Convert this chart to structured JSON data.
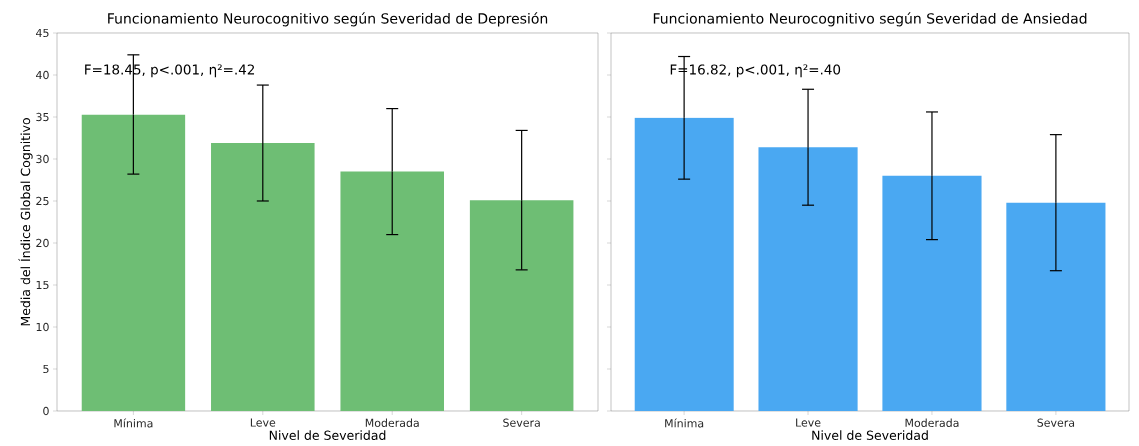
{
  "chart_data": [
    {
      "type": "bar",
      "title": "Funcionamiento Neurocognitivo según Severidad de Depresión",
      "xlabel": "Nivel de Severidad",
      "ylabel": "Media del Índice Global Cognitivo",
      "categories": [
        "Mínima",
        "Leve",
        "Moderada",
        "Severa"
      ],
      "values": [
        35.3,
        31.9,
        28.5,
        25.1
      ],
      "errors": [
        7.1,
        6.9,
        7.5,
        8.3
      ],
      "color": "#6ebe74",
      "ylim": [
        0,
        45
      ],
      "yticks": [
        0,
        5,
        10,
        15,
        20,
        25,
        30,
        35,
        40,
        45
      ],
      "annotations": [
        "F=18.45, p<.001, η²=.42"
      ]
    },
    {
      "type": "bar",
      "title": "Funcionamiento Neurocognitivo según Severidad de Ansiedad",
      "xlabel": "Nivel de Severidad",
      "categories": [
        "Mínima",
        "Leve",
        "Moderada",
        "Severa"
      ],
      "values": [
        34.9,
        31.4,
        28.0,
        24.8
      ],
      "errors": [
        7.3,
        6.9,
        7.6,
        8.1
      ],
      "color": "#4aa8f2",
      "ylim": [
        0,
        45
      ],
      "yticks": [
        0,
        5,
        10,
        15,
        20,
        25,
        30,
        35,
        40,
        45
      ],
      "tick_labels": "x",
      "annotations": [
        "F=16.82, p<.001, η²=.40"
      ]
    }
  ]
}
